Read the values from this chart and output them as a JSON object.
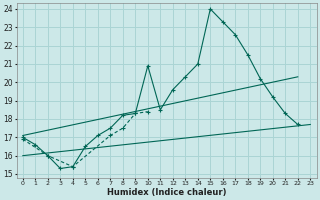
{
  "xlabel": "Humidex (Indice chaleur)",
  "xlim": [
    -0.5,
    23.5
  ],
  "ylim": [
    14.8,
    24.3
  ],
  "xticks": [
    0,
    1,
    2,
    3,
    4,
    5,
    6,
    7,
    8,
    9,
    10,
    11,
    12,
    13,
    14,
    15,
    16,
    17,
    18,
    19,
    20,
    21,
    22,
    23
  ],
  "yticks": [
    15,
    16,
    17,
    18,
    19,
    20,
    21,
    22,
    23,
    24
  ],
  "bg_color": "#cce8e8",
  "grid_color": "#aad4d4",
  "line_color": "#006655",
  "line1_x": [
    0,
    1,
    2,
    3,
    4,
    5,
    6,
    7,
    8,
    9,
    10,
    11,
    12,
    13,
    14,
    15,
    16,
    17,
    18,
    19,
    20,
    21,
    22
  ],
  "line1_y": [
    17.0,
    16.6,
    16.0,
    15.3,
    15.4,
    16.5,
    17.1,
    17.5,
    18.2,
    18.3,
    20.9,
    18.5,
    19.6,
    20.3,
    21.0,
    24.0,
    23.3,
    22.6,
    21.5,
    20.2,
    19.2,
    18.3,
    17.7
  ],
  "line2_x": [
    0,
    2,
    4,
    7,
    8,
    9,
    10
  ],
  "line2_y": [
    16.9,
    16.0,
    15.4,
    17.1,
    17.5,
    18.3,
    18.4
  ],
  "line3_x": [
    0,
    23
  ],
  "line3_y": [
    16.0,
    17.7
  ],
  "line4_x": [
    0,
    22
  ],
  "line4_y": [
    17.1,
    20.3
  ]
}
